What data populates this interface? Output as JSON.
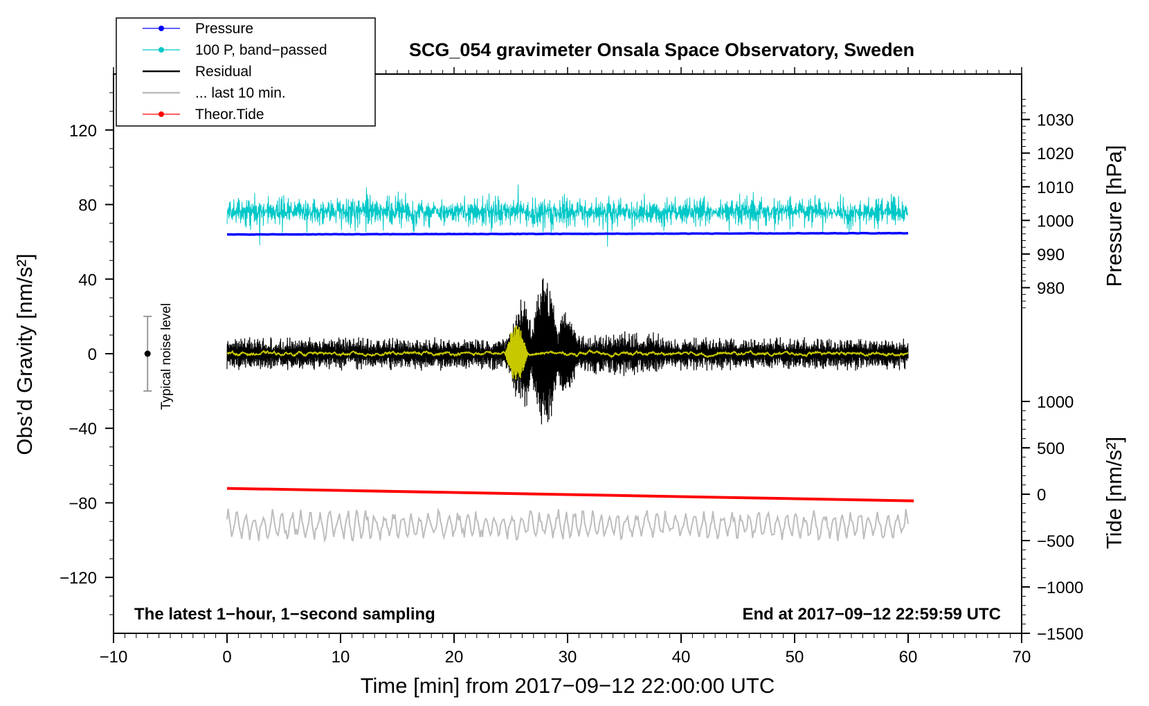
{
  "chart_data": {
    "type": "line",
    "title": "SCG_054 gravimeter Onsala Space Observatory, Sweden",
    "xlabel": "Time [min] from 2017−09−12 22:00:00 UTC",
    "ylabel_left": "Obs’d Gravity [nm/s²]",
    "ylabel_right_pressure": "Pressure [hPa]",
    "ylabel_right_tide": "Tide [nm/s²]",
    "footer_left": "The latest 1−hour, 1−second sampling",
    "footer_right": "End at 2017−09−12 22:59:59 UTC",
    "noise_label": "Typical noise level",
    "xlim": [
      -10,
      70
    ],
    "xticks": [
      -10,
      0,
      10,
      20,
      30,
      40,
      50,
      60,
      70
    ],
    "xtick_labels": [
      "−10",
      "0",
      "10",
      "20",
      "30",
      "40",
      "50",
      "60",
      "70"
    ],
    "ylim": [
      -150,
      150
    ],
    "yticks": [
      -120,
      -80,
      -40,
      0,
      40,
      80,
      120
    ],
    "ytick_labels": [
      "−120",
      "−80",
      "−40",
      "0",
      "40",
      "80",
      "120"
    ],
    "pressure_ylim": [
      973.33,
      1036.1
    ],
    "pressure_ticks": [
      980,
      990,
      1000,
      1010,
      1020,
      1030
    ],
    "pressure_tick_labels": [
      "980",
      "990",
      "1000",
      "1010",
      "1020",
      "1030"
    ],
    "tide_ylim": [
      -1500,
      1000
    ],
    "tide_ticks": [
      -1500,
      -1000,
      -500,
      0,
      500,
      1000
    ],
    "tide_tick_labels": [
      "−1500",
      "−1000",
      "−500",
      "0",
      "500",
      "1000"
    ],
    "legend": [
      {
        "label": "Pressure",
        "color": "#0000ff",
        "marker": true
      },
      {
        "label": "100 P, band−passed",
        "color": "#00c8c8",
        "marker": true
      },
      {
        "label": "Residual",
        "color": "#000000",
        "marker": false
      },
      {
        "label": "... last 10 min.",
        "color": "#bdbdbd",
        "marker": false
      },
      {
        "label": "Theor.Tide",
        "color": "#ff0000",
        "marker": true
      }
    ],
    "noise_bar": {
      "x": -7,
      "center": 0,
      "half_range": 20
    },
    "series": [
      {
        "name": "Pressure",
        "color": "#0000ff",
        "axis": "pressure",
        "x": [
          0,
          30,
          60
        ],
        "values": [
          995.8,
          996.0,
          996.2
        ]
      },
      {
        "name": "100 P, band−passed",
        "color": "#00c8c8",
        "axis": "gravity",
        "x_range": [
          0,
          60
        ],
        "baseline": 76,
        "typical_amplitude": 8,
        "min": 50,
        "max": 95
      },
      {
        "name": "Residual",
        "color": "#000000",
        "axis": "gravity",
        "x_range": [
          0,
          60
        ],
        "baseline": 0,
        "typical_amplitude": 8,
        "event_window": [
          24.5,
          31
        ],
        "event_peak": [
          -47,
          46
        ]
      },
      {
        "name": "Residual smoothed",
        "color": "#c8c800",
        "axis": "gravity",
        "x_range": [
          0,
          60
        ],
        "baseline": 0,
        "typical_amplitude": 2,
        "event_window": [
          24.5,
          26.5
        ],
        "event_peak": [
          -15,
          17
        ]
      },
      {
        "name": "... last 10 min.",
        "color": "#bdbdbd",
        "axis": "gravity",
        "x_range": [
          0,
          60
        ],
        "baseline": -92,
        "typical_amplitude": 7,
        "min": -104,
        "max": -82
      },
      {
        "name": "Theor.Tide",
        "color": "#ff0000",
        "axis": "tide",
        "x": [
          0,
          60.5
        ],
        "values": [
          63,
          -72
        ]
      }
    ]
  }
}
